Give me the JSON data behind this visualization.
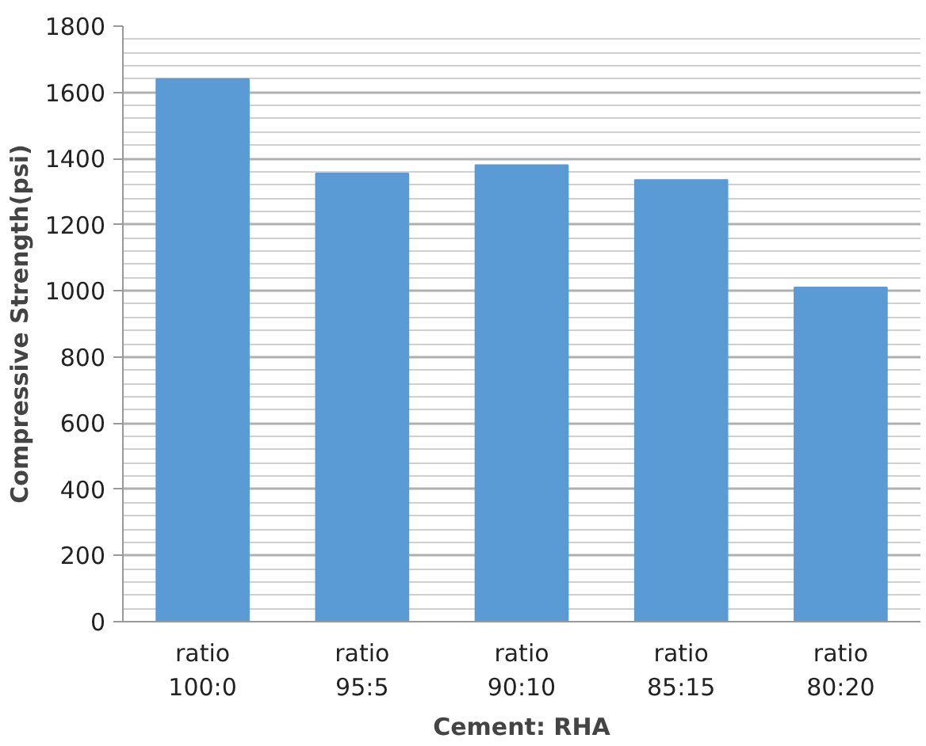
{
  "chart_data": {
    "type": "bar",
    "xlabel": "Cement: RHA",
    "ylabel": "Compressive Strength(psi)",
    "categories": [
      "ratio 100:0",
      "ratio 95:5",
      "ratio 90:10",
      "ratio 85:15",
      "ratio 80:20"
    ],
    "values": [
      1640,
      1355,
      1380,
      1335,
      1010
    ],
    "color": "#5b9bd5",
    "ylim": [
      0,
      1800
    ],
    "yticks": [
      0,
      200,
      400,
      600,
      800,
      1000,
      1200,
      1400,
      1600,
      1800
    ],
    "grid": "y"
  }
}
